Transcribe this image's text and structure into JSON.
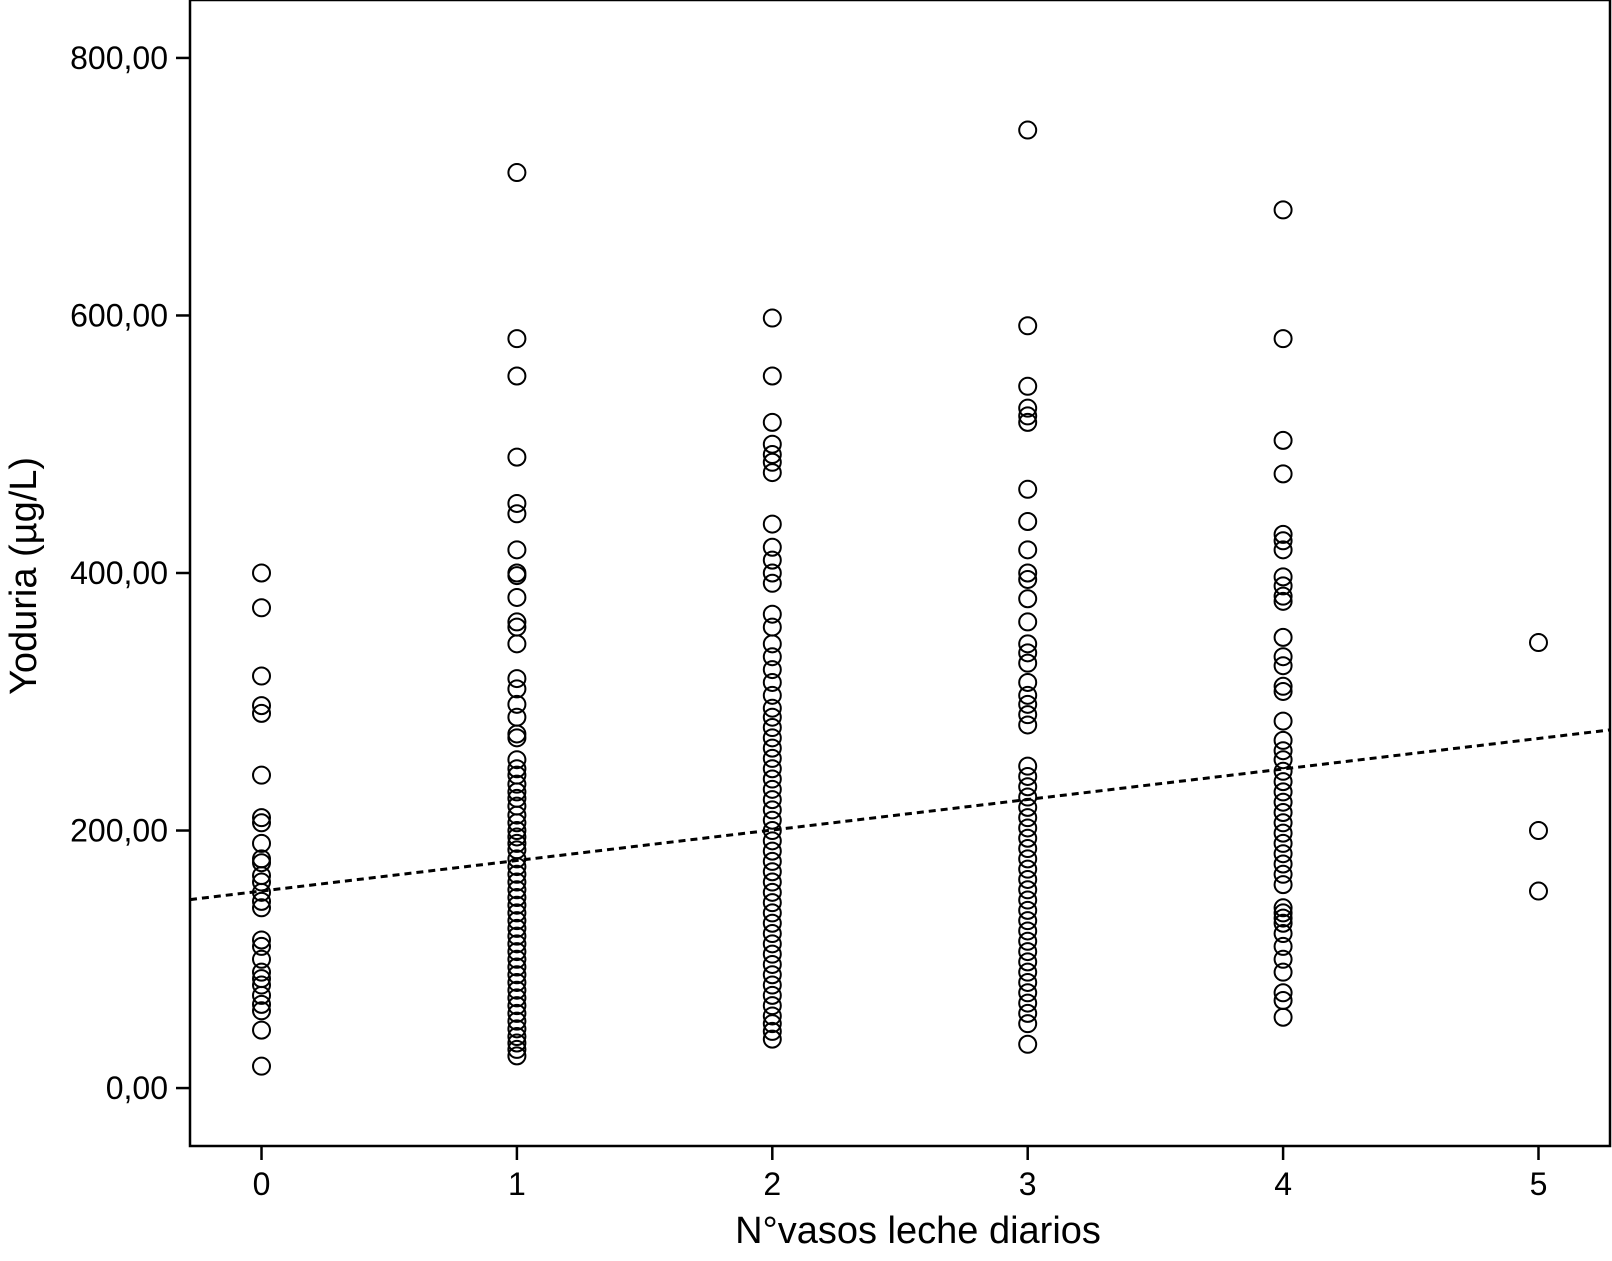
{
  "chart_data": {
    "type": "scatter",
    "xlabel": "N°vasos leche diarios",
    "ylabel": "Yoduria (µg/L)",
    "xlim": [
      -0.28,
      5.28
    ],
    "ylim": [
      -45,
      845
    ],
    "x_ticks": [
      0,
      1,
      2,
      3,
      4,
      5
    ],
    "x_tick_labels": [
      "0",
      "1",
      "2",
      "3",
      "4",
      "5"
    ],
    "y_ticks": [
      0,
      200,
      400,
      600,
      800
    ],
    "y_tick_labels": [
      "0,00",
      "200,00",
      "400,00",
      "600,00",
      "800,00"
    ],
    "grid": false,
    "marker": "open-circle",
    "fit_line": {
      "style": "dashed",
      "intercept": 153,
      "slope": 23.7
    },
    "points": {
      "0": [
        400,
        373,
        320,
        297,
        291,
        243,
        210,
        206,
        190,
        178,
        175,
        165,
        160,
        152,
        145,
        140,
        115,
        110,
        100,
        90,
        85,
        80,
        72,
        65,
        60,
        45,
        17
      ],
      "1": [
        711,
        582,
        553,
        490,
        454,
        446,
        418,
        400,
        398,
        381,
        362,
        358,
        345,
        318,
        310,
        298,
        288,
        275,
        272,
        255,
        248,
        243,
        236,
        230,
        225,
        219,
        212,
        206,
        200,
        195,
        190,
        185,
        178,
        172,
        166,
        160,
        154,
        148,
        142,
        136,
        130,
        124,
        118,
        112,
        106,
        100,
        94,
        88,
        82,
        76,
        70,
        64,
        58,
        52,
        46,
        40,
        35,
        30,
        25
      ],
      "2": [
        598,
        553,
        517,
        500,
        492,
        486,
        478,
        438,
        420,
        410,
        400,
        392,
        368,
        358,
        345,
        335,
        325,
        315,
        305,
        295,
        288,
        280,
        272,
        264,
        256,
        248,
        240,
        232,
        224,
        216,
        208,
        200,
        192,
        184,
        176,
        168,
        160,
        152,
        144,
        136,
        128,
        120,
        112,
        104,
        96,
        88,
        80,
        72,
        64,
        56,
        50,
        44,
        38
      ],
      "3": [
        744,
        592,
        545,
        528,
        522,
        517,
        465,
        440,
        418,
        400,
        395,
        380,
        362,
        345,
        338,
        330,
        315,
        305,
        298,
        290,
        282,
        250,
        242,
        234,
        226,
        218,
        210,
        202,
        194,
        186,
        178,
        170,
        162,
        154,
        146,
        138,
        130,
        122,
        114,
        106,
        98,
        90,
        82,
        74,
        66,
        58,
        50,
        34
      ],
      "4": [
        682,
        582,
        503,
        477,
        430,
        425,
        418,
        397,
        390,
        382,
        378,
        350,
        335,
        328,
        312,
        308,
        285,
        270,
        262,
        255,
        246,
        238,
        230,
        222,
        214,
        206,
        198,
        190,
        182,
        174,
        166,
        158,
        140,
        136,
        132,
        128,
        120,
        110,
        100,
        90,
        74,
        68,
        55
      ],
      "5": [
        346,
        200,
        153
      ]
    }
  }
}
